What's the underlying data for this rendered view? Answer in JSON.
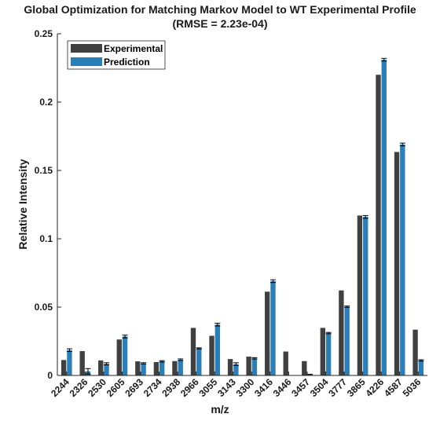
{
  "chart_data": {
    "type": "bar",
    "title": "Global Optimization for Matching Markov Model to WT Experimental Profile",
    "subtitle": "(RMSE = 2.23e-04)",
    "xlabel": "m/z",
    "ylabel": "Relative Intensity",
    "ylim": [
      0,
      0.25
    ],
    "yticks": [
      "0",
      "0.05",
      "0.1",
      "0.15",
      "0.2",
      "0.25"
    ],
    "categories": [
      "2244",
      "2326",
      "2530",
      "2605",
      "2693",
      "2734",
      "2938",
      "2966",
      "3055",
      "3143",
      "3300",
      "3416",
      "3446",
      "3457",
      "3504",
      "3777",
      "3865",
      "4226",
      "4587",
      "5036"
    ],
    "series": [
      {
        "name": "Experimental",
        "color": "#404040",
        "values": [
          0.0113,
          0.0178,
          0.011,
          0.0263,
          0.0103,
          0.0098,
          0.0105,
          0.0348,
          0.029,
          0.012,
          0.0138,
          0.0613,
          0.0175,
          0.0105,
          0.0348,
          0.0622,
          0.117,
          0.22,
          0.1635,
          0.0335
        ]
      },
      {
        "name": "Prediction",
        "color": "#2a7fb8",
        "values": [
          0.0185,
          0.003,
          0.0085,
          0.0285,
          0.0088,
          0.0103,
          0.0115,
          0.0198,
          0.0372,
          0.0083,
          0.0125,
          0.069,
          0.0,
          0.0005,
          0.031,
          0.0503,
          0.116,
          0.231,
          0.169,
          0.011
        ],
        "errors": [
          0.001,
          0.002,
          0.0008,
          0.001,
          0.0005,
          0.0005,
          0.0006,
          0.0004,
          0.001,
          0.001,
          0.0005,
          0.001,
          0.0,
          0.0004,
          0.0005,
          0.0005,
          0.001,
          0.001,
          0.001,
          0.0005
        ]
      }
    ],
    "legend": "top-left",
    "grid": false
  }
}
